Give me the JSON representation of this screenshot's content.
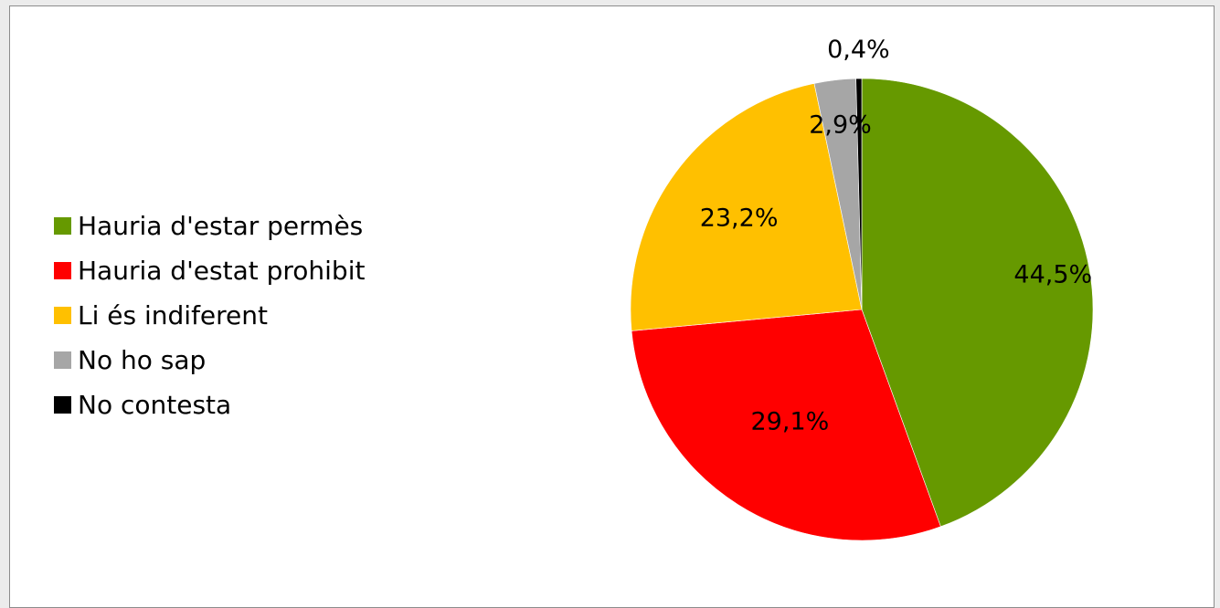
{
  "chart_data": {
    "type": "pie",
    "categories": [
      "Hauria d'estar permès",
      "Hauria d'estat prohibit",
      "Li és indiferent",
      "No ho sap",
      "No contesta"
    ],
    "values": [
      44.5,
      29.1,
      23.2,
      2.9,
      0.4
    ],
    "data_labels": [
      "44,5%",
      "29,1%",
      "23,2%",
      "2,9%",
      "0,4%"
    ],
    "colors": [
      "#669900",
      "#ff0000",
      "#ffc000",
      "#a6a6a6",
      "#000000"
    ],
    "start_angle_deg": 0,
    "direction": "clockwise",
    "legend_position": "left",
    "title": "",
    "unit": "%"
  },
  "legend": {
    "items": [
      {
        "label": "Hauria d'estar permès",
        "color": "#669900"
      },
      {
        "label": "Hauria d'estat prohibit",
        "color": "#ff0000"
      },
      {
        "label": "Li és indiferent",
        "color": "#ffc000"
      },
      {
        "label": "No ho sap",
        "color": "#a6a6a6"
      },
      {
        "label": "No contesta",
        "color": "#000000"
      }
    ]
  }
}
